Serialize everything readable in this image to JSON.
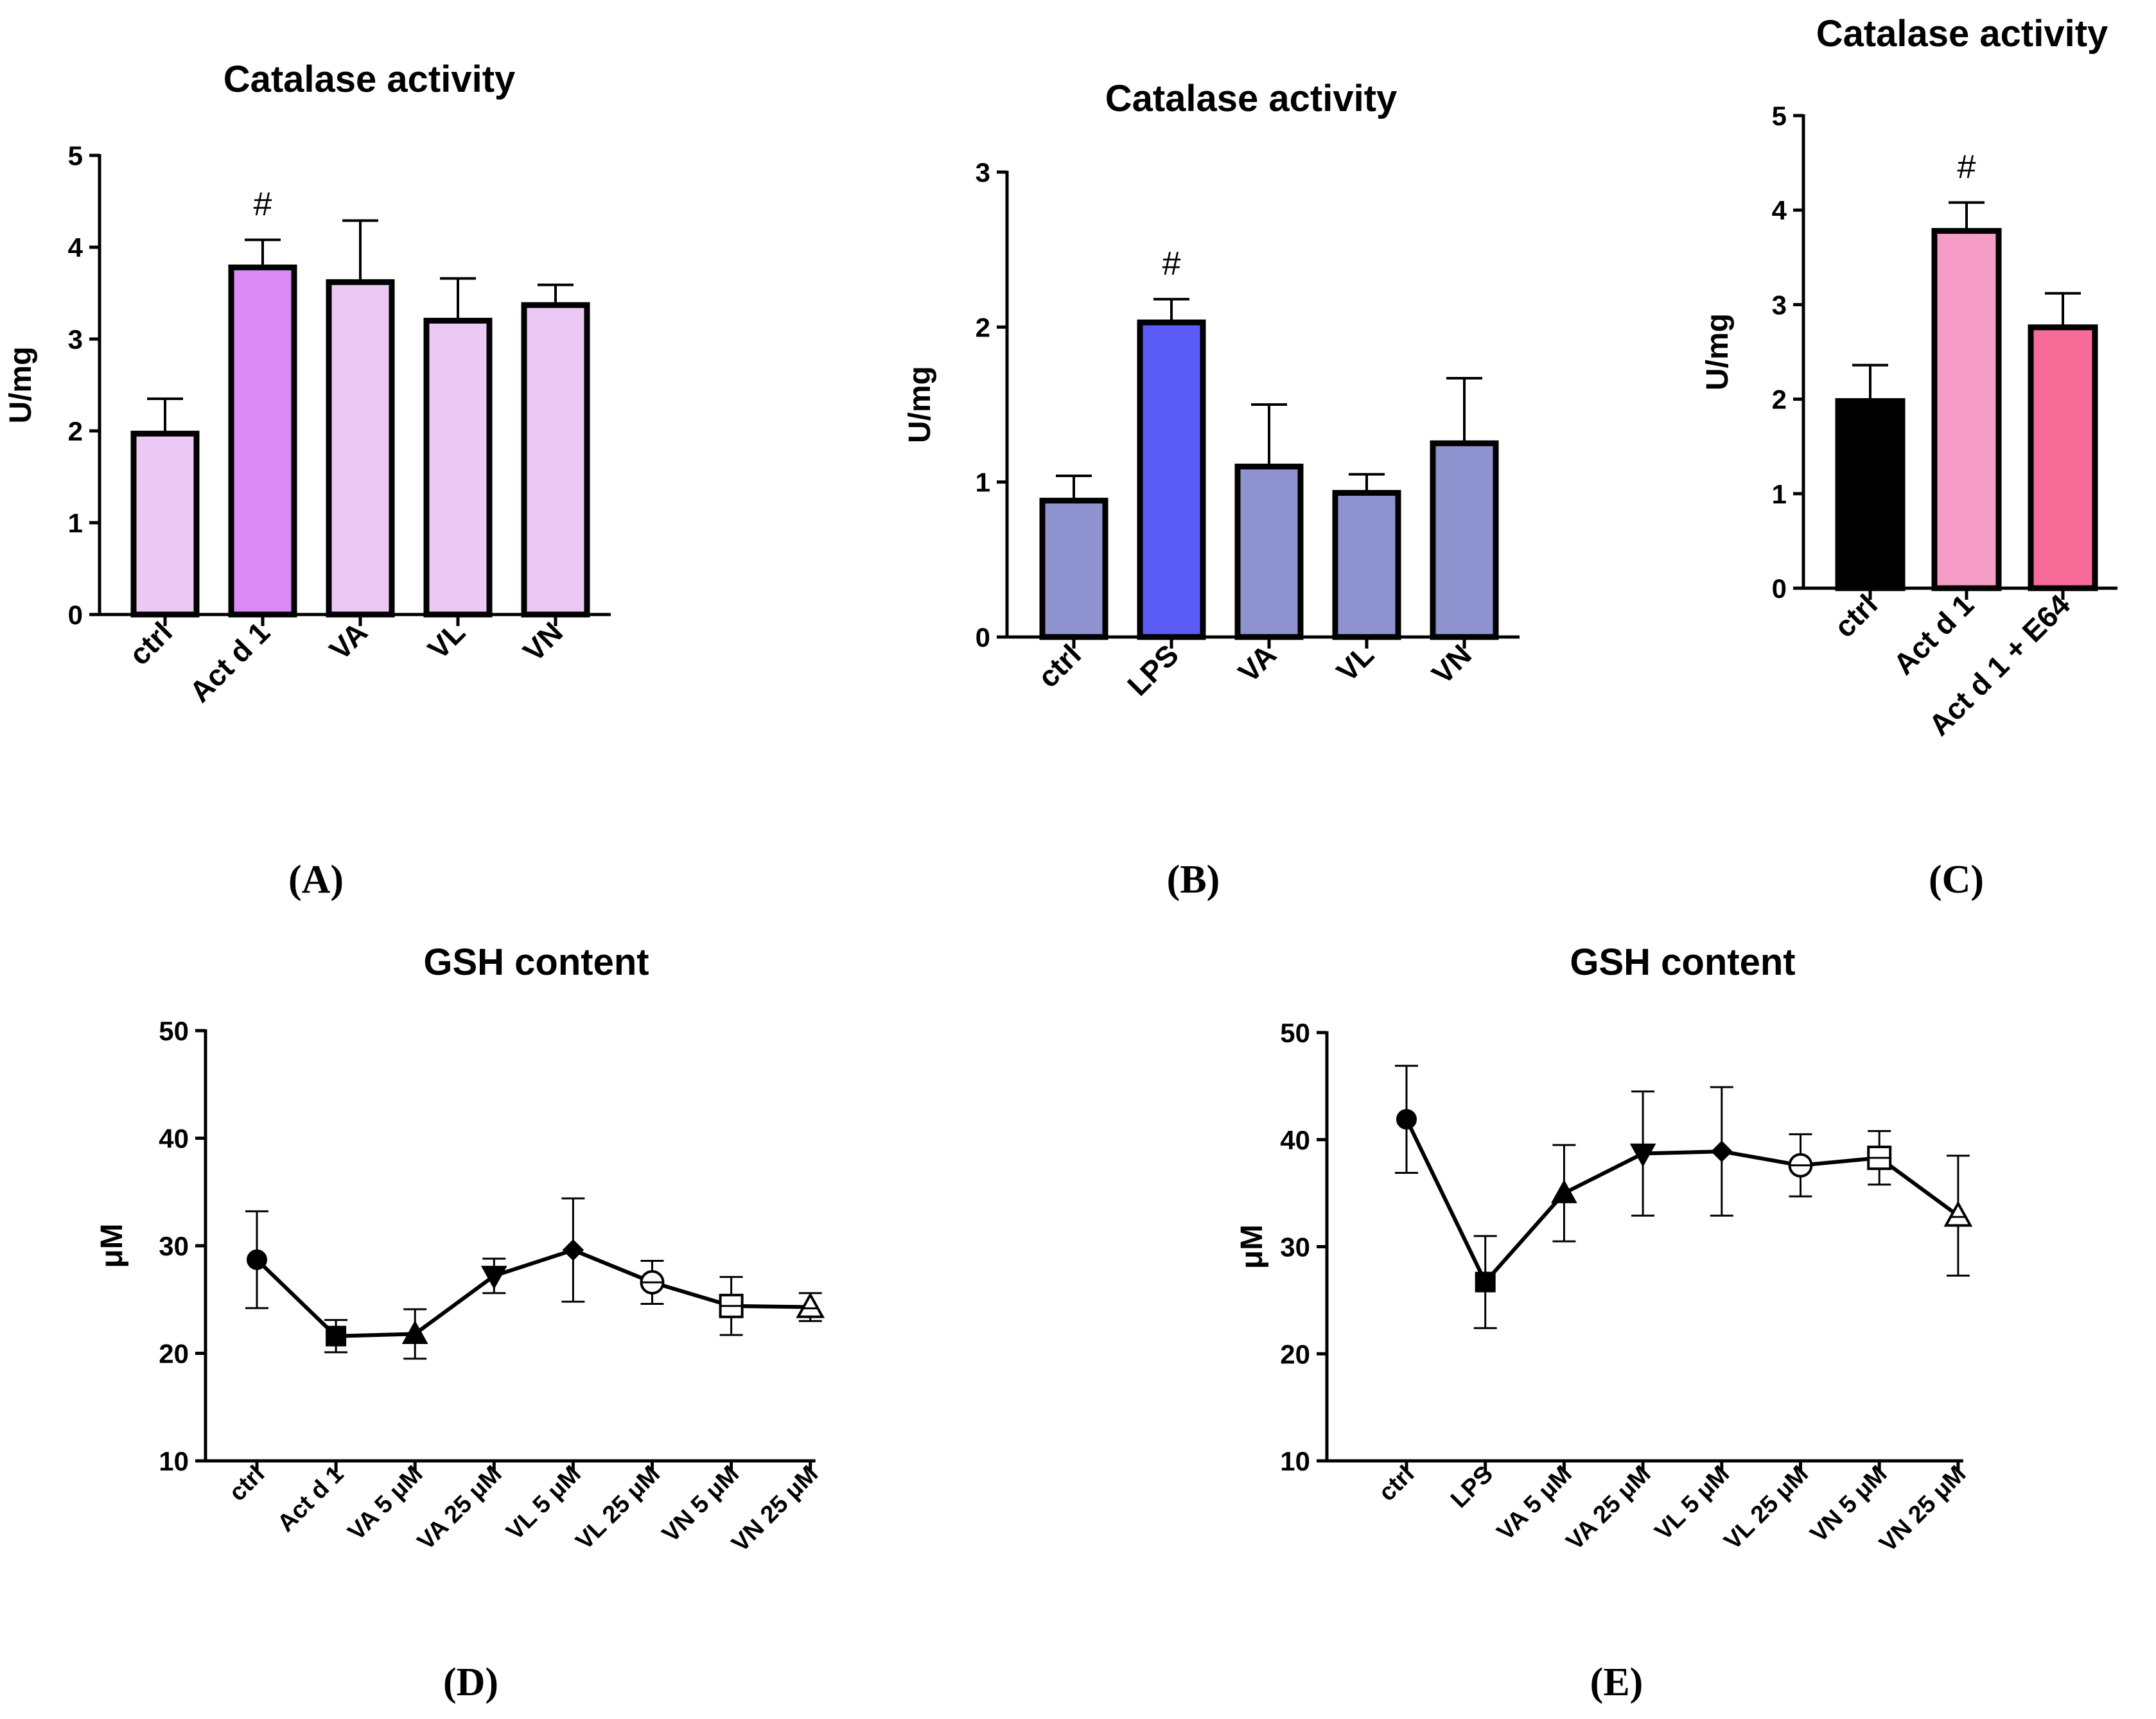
{
  "chart_data": [
    {
      "id": "A",
      "panel_label": "(A)",
      "type": "bar",
      "title": "Catalase activity",
      "ylabel": "U/mg",
      "xlabel": "",
      "ylim": [
        0,
        5
      ],
      "yticks": [
        0,
        1,
        2,
        3,
        4,
        5
      ],
      "categories": [
        "ctrl",
        "Act d 1",
        "VA",
        "VL",
        "VN"
      ],
      "values": [
        1.97,
        3.78,
        3.62,
        3.2,
        3.37
      ],
      "errors": [
        0.38,
        0.3,
        0.67,
        0.46,
        0.22
      ],
      "colors": [
        "#ecc8f4",
        "#d98af5",
        "#ecc8f4",
        "#ecc8f4",
        "#ecc8f4"
      ],
      "annotations": [
        {
          "category": "Act d 1",
          "text": "#"
        }
      ]
    },
    {
      "id": "B",
      "panel_label": "(B)",
      "type": "bar",
      "title": "Catalase activity",
      "ylabel": "U/mg",
      "xlabel": "",
      "ylim": [
        0,
        3
      ],
      "yticks": [
        0,
        1,
        2,
        3
      ],
      "categories": [
        "ctrl",
        "LPS",
        "VA",
        "VL",
        "VN"
      ],
      "values": [
        0.88,
        2.03,
        1.1,
        0.93,
        1.25
      ],
      "errors": [
        0.16,
        0.15,
        0.4,
        0.12,
        0.42
      ],
      "colors": [
        "#8f94d0",
        "#5b5cf5",
        "#8f94d0",
        "#8f94d0",
        "#8f94d0"
      ],
      "annotations": [
        {
          "category": "LPS",
          "text": "#"
        }
      ]
    },
    {
      "id": "C",
      "panel_label": "(C)",
      "type": "bar",
      "title": "Catalase activity",
      "ylabel": "U/mg",
      "xlabel": "",
      "ylim": [
        0,
        5
      ],
      "yticks": [
        0,
        1,
        2,
        3,
        4,
        5
      ],
      "categories": [
        "ctrl",
        "Act d 1",
        "Act d 1 + E64"
      ],
      "values": [
        1.98,
        3.78,
        2.76
      ],
      "errors": [
        0.38,
        0.3,
        0.36
      ],
      "colors": [
        "#000000",
        "#f79cc6",
        "#f66b98"
      ],
      "annotations": [
        {
          "category": "Act d 1",
          "text": "#"
        }
      ]
    },
    {
      "id": "D",
      "panel_label": "(D)",
      "type": "line",
      "title": "GSH content",
      "ylabel": "μM",
      "xlabel": "",
      "ylim": [
        10,
        50
      ],
      "yticks": [
        10,
        20,
        30,
        40,
        50
      ],
      "categories": [
        "ctrl",
        "Act d 1",
        "VA 5 μM",
        "VA 25 μM",
        "VL 5 μM",
        "VL 25 μM",
        "VN 5 μM",
        "VN 25 μM"
      ],
      "values": [
        28.7,
        21.6,
        21.8,
        27.2,
        29.6,
        26.6,
        24.4,
        24.3
      ],
      "errors": [
        4.5,
        1.5,
        2.3,
        1.6,
        4.8,
        2.0,
        2.7,
        1.3
      ],
      "markers": [
        "circle",
        "square",
        "triangle-up",
        "triangle-down",
        "diamond",
        "circle-open",
        "square-open",
        "triangle-open"
      ]
    },
    {
      "id": "E",
      "panel_label": "(E)",
      "type": "line",
      "title": "GSH content",
      "ylabel": "μM",
      "xlabel": "",
      "ylim": [
        10,
        50
      ],
      "yticks": [
        10,
        20,
        30,
        40,
        50
      ],
      "categories": [
        "ctrl",
        "LPS",
        "VA 5 μM",
        "VA 25 μM",
        "VL 5 μM",
        "VL 25 μM",
        "VN 5 μM",
        "VN 25 μM"
      ],
      "values": [
        41.9,
        26.7,
        35.0,
        38.7,
        38.9,
        37.6,
        38.3,
        32.9
      ],
      "errors": [
        5.0,
        4.3,
        4.5,
        5.8,
        6.0,
        2.9,
        2.5,
        5.6
      ],
      "markers": [
        "circle",
        "square",
        "triangle-up",
        "triangle-down",
        "diamond",
        "circle-open",
        "square-open",
        "triangle-open"
      ]
    }
  ]
}
